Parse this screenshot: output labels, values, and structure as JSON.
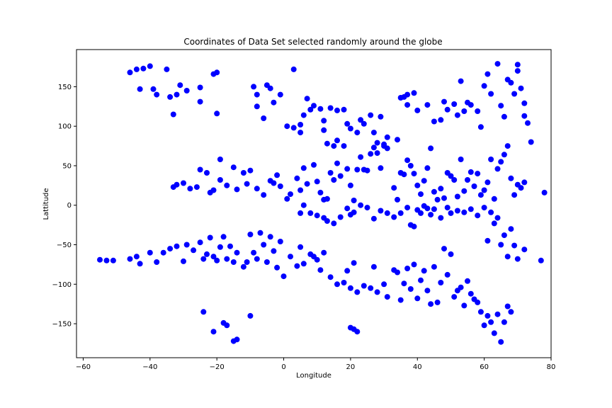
{
  "chart_data": {
    "type": "scatter",
    "title": "Coordinates of Data Set selected randomly around the globe",
    "xlabel": "Longitude",
    "ylabel": "Lattitude",
    "xlim": [
      -62,
      80
    ],
    "ylim": [
      -193,
      197
    ],
    "xticks": [
      -60,
      -40,
      -20,
      0,
      20,
      40,
      60,
      80
    ],
    "yticks": [
      -150,
      -100,
      -50,
      0,
      50,
      100,
      150
    ],
    "xtick_labels": [
      "−60",
      "−40",
      "−20",
      "0",
      "20",
      "40",
      "60",
      "80"
    ],
    "ytick_labels": [
      "−150",
      "−100",
      "−50",
      "0",
      "50",
      "100",
      "150"
    ],
    "grid": false,
    "marker_color": "#0000ff",
    "points": [
      [
        -46,
        168
      ],
      [
        -44,
        172
      ],
      [
        -42,
        173
      ],
      [
        -40,
        176
      ],
      [
        -39,
        147
      ],
      [
        -35,
        172
      ],
      [
        -31,
        152
      ],
      [
        -25,
        149
      ],
      [
        -21,
        166
      ],
      [
        -20,
        168
      ],
      [
        -43,
        147
      ],
      [
        -38,
        140
      ],
      [
        -34,
        137
      ],
      [
        -32,
        140
      ],
      [
        -29,
        145
      ],
      [
        -25,
        131
      ],
      [
        -20,
        116
      ],
      [
        -33,
        115
      ],
      [
        -9,
        150
      ],
      [
        -8,
        140
      ],
      [
        -5,
        152
      ],
      [
        -4,
        148
      ],
      [
        -3,
        130
      ],
      [
        -1,
        140
      ],
      [
        -8,
        125
      ],
      [
        -6,
        110
      ],
      [
        3,
        172
      ],
      [
        1,
        100
      ],
      [
        3,
        98
      ],
      [
        5,
        92
      ],
      [
        6,
        114
      ],
      [
        5,
        102
      ],
      [
        7,
        135
      ],
      [
        8,
        121
      ],
      [
        9,
        126
      ],
      [
        11,
        122
      ],
      [
        12,
        107
      ],
      [
        14,
        123
      ],
      [
        16,
        120
      ],
      [
        18,
        121
      ],
      [
        12,
        95
      ],
      [
        13,
        78
      ],
      [
        15,
        75
      ],
      [
        16,
        82
      ],
      [
        18,
        75
      ],
      [
        19,
        103
      ],
      [
        20,
        97
      ],
      [
        22,
        92
      ],
      [
        23,
        108
      ],
      [
        24,
        103
      ],
      [
        26,
        114
      ],
      [
        27,
        92
      ],
      [
        28,
        79
      ],
      [
        29,
        112
      ],
      [
        30,
        77
      ],
      [
        31,
        86
      ],
      [
        34,
        83
      ],
      [
        35,
        136
      ],
      [
        36,
        137
      ],
      [
        37,
        140
      ],
      [
        37,
        127
      ],
      [
        39,
        142
      ],
      [
        40,
        120
      ],
      [
        43,
        127
      ],
      [
        45,
        106
      ],
      [
        47,
        108
      ],
      [
        48,
        131
      ],
      [
        49,
        121
      ],
      [
        51,
        128
      ],
      [
        52,
        114
      ],
      [
        53,
        157
      ],
      [
        54,
        119
      ],
      [
        55,
        130
      ],
      [
        56,
        127
      ],
      [
        58,
        119
      ],
      [
        59,
        99
      ],
      [
        60,
        151
      ],
      [
        61,
        166
      ],
      [
        62,
        141
      ],
      [
        64,
        179
      ],
      [
        65,
        126
      ],
      [
        66,
        112
      ],
      [
        67,
        159
      ],
      [
        68,
        155
      ],
      [
        69,
        141
      ],
      [
        70,
        178
      ],
      [
        70,
        170
      ],
      [
        71,
        148
      ],
      [
        72,
        129
      ],
      [
        72,
        113
      ],
      [
        73,
        104
      ],
      [
        74,
        80
      ],
      [
        -33,
        23
      ],
      [
        -32,
        26
      ],
      [
        -30,
        28
      ],
      [
        -28,
        21
      ],
      [
        -26,
        23
      ],
      [
        -25,
        45
      ],
      [
        -23,
        41
      ],
      [
        -22,
        16
      ],
      [
        -21,
        19
      ],
      [
        -19,
        58
      ],
      [
        -19,
        32
      ],
      [
        -17,
        25
      ],
      [
        -15,
        48
      ],
      [
        -14,
        20
      ],
      [
        -12,
        41
      ],
      [
        -11,
        27
      ],
      [
        -10,
        44
      ],
      [
        -8,
        21
      ],
      [
        -6,
        13
      ],
      [
        -4,
        31
      ],
      [
        -3,
        28
      ],
      [
        -2,
        38
      ],
      [
        -1,
        24
      ],
      [
        1,
        8
      ],
      [
        2,
        14
      ],
      [
        4,
        34
      ],
      [
        5,
        19
      ],
      [
        6,
        47
      ],
      [
        7,
        27
      ],
      [
        9,
        51
      ],
      [
        10,
        30
      ],
      [
        11,
        16
      ],
      [
        12,
        7
      ],
      [
        13,
        8
      ],
      [
        14,
        41
      ],
      [
        15,
        32
      ],
      [
        16,
        53
      ],
      [
        17,
        37
      ],
      [
        19,
        46
      ],
      [
        20,
        25
      ],
      [
        21,
        6
      ],
      [
        22,
        45
      ],
      [
        23,
        61
      ],
      [
        24,
        45
      ],
      [
        25,
        44
      ],
      [
        26,
        65
      ],
      [
        27,
        73
      ],
      [
        28,
        66
      ],
      [
        29,
        47
      ],
      [
        30,
        75
      ],
      [
        31,
        72
      ],
      [
        33,
        22
      ],
      [
        34,
        7
      ],
      [
        35,
        41
      ],
      [
        36,
        39
      ],
      [
        37,
        57
      ],
      [
        38,
        50
      ],
      [
        39,
        40
      ],
      [
        40,
        25
      ],
      [
        41,
        14
      ],
      [
        42,
        31
      ],
      [
        43,
        47
      ],
      [
        44,
        72
      ],
      [
        45,
        17
      ],
      [
        46,
        7
      ],
      [
        47,
        21
      ],
      [
        48,
        9
      ],
      [
        49,
        41
      ],
      [
        50,
        37
      ],
      [
        51,
        32
      ],
      [
        52,
        11
      ],
      [
        53,
        58
      ],
      [
        54,
        18
      ],
      [
        55,
        32
      ],
      [
        56,
        42
      ],
      [
        57,
        24
      ],
      [
        58,
        40
      ],
      [
        59,
        13
      ],
      [
        60,
        19
      ],
      [
        61,
        29
      ],
      [
        62,
        58
      ],
      [
        63,
        8
      ],
      [
        64,
        46
      ],
      [
        65,
        55
      ],
      [
        66,
        64
      ],
      [
        67,
        75
      ],
      [
        68,
        34
      ],
      [
        69,
        13
      ],
      [
        70,
        26
      ],
      [
        71,
        22
      ],
      [
        72,
        29
      ],
      [
        78,
        16
      ],
      [
        5,
        -10
      ],
      [
        6,
        0
      ],
      [
        8,
        -10
      ],
      [
        10,
        -13
      ],
      [
        12,
        -16
      ],
      [
        13,
        -20
      ],
      [
        15,
        -23
      ],
      [
        17,
        -15
      ],
      [
        19,
        -4
      ],
      [
        20,
        -12
      ],
      [
        21,
        -9
      ],
      [
        23,
        0
      ],
      [
        25,
        -3
      ],
      [
        27,
        -17
      ],
      [
        29,
        -7
      ],
      [
        31,
        -10
      ],
      [
        33,
        -15
      ],
      [
        35,
        -10
      ],
      [
        37,
        -3
      ],
      [
        38,
        -25
      ],
      [
        39,
        -27
      ],
      [
        40,
        -6
      ],
      [
        41,
        -10
      ],
      [
        42,
        -1
      ],
      [
        43,
        -4
      ],
      [
        44,
        -12
      ],
      [
        45,
        -5
      ],
      [
        47,
        -16
      ],
      [
        49,
        -3
      ],
      [
        50,
        -10
      ],
      [
        52,
        -7
      ],
      [
        54,
        -9
      ],
      [
        56,
        -5
      ],
      [
        58,
        -13
      ],
      [
        60,
        -3
      ],
      [
        61,
        -45
      ],
      [
        62,
        -9
      ],
      [
        63,
        -23
      ],
      [
        64,
        -16
      ],
      [
        65,
        -50
      ],
      [
        66,
        -38
      ],
      [
        67,
        -65
      ],
      [
        68,
        -30
      ],
      [
        -55,
        -69
      ],
      [
        -53,
        -70
      ],
      [
        -51,
        -70
      ],
      [
        -46,
        -68
      ],
      [
        -44,
        -65
      ],
      [
        -43,
        -74
      ],
      [
        -40,
        -60
      ],
      [
        -38,
        -72
      ],
      [
        -36,
        -60
      ],
      [
        -34,
        -55
      ],
      [
        -32,
        -52
      ],
      [
        -30,
        -71
      ],
      [
        -29,
        -50
      ],
      [
        -27,
        -57
      ],
      [
        -25,
        -47
      ],
      [
        -24,
        -68
      ],
      [
        -23,
        -62
      ],
      [
        -22,
        -41
      ],
      [
        -21,
        -65
      ],
      [
        -20,
        -70
      ],
      [
        -19,
        -53
      ],
      [
        -18,
        -40
      ],
      [
        -17,
        -68
      ],
      [
        -16,
        -52
      ],
      [
        -15,
        -72
      ],
      [
        -14,
        -60
      ],
      [
        -12,
        -78
      ],
      [
        -11,
        -72
      ],
      [
        -10,
        -37
      ],
      [
        -9,
        -60
      ],
      [
        -8,
        -68
      ],
      [
        -7,
        -35
      ],
      [
        -6,
        -50
      ],
      [
        -5,
        -72
      ],
      [
        -4,
        -40
      ],
      [
        -3,
        -58
      ],
      [
        -2,
        -79
      ],
      [
        -1,
        -46
      ],
      [
        0,
        -90
      ],
      [
        2,
        -65
      ],
      [
        4,
        -77
      ],
      [
        5,
        -53
      ],
      [
        6,
        -74
      ],
      [
        8,
        -62
      ],
      [
        9,
        -65
      ],
      [
        10,
        -69
      ],
      [
        11,
        -82
      ],
      [
        12,
        -60
      ],
      [
        14,
        -91
      ],
      [
        16,
        -100
      ],
      [
        18,
        -98
      ],
      [
        19,
        -83
      ],
      [
        20,
        -105
      ],
      [
        21,
        -73
      ],
      [
        22,
        -110
      ],
      [
        24,
        -102
      ],
      [
        26,
        -105
      ],
      [
        27,
        -78
      ],
      [
        28,
        -110
      ],
      [
        30,
        -100
      ],
      [
        31,
        -116
      ],
      [
        33,
        -82
      ],
      [
        34,
        -85
      ],
      [
        35,
        -120
      ],
      [
        36,
        -99
      ],
      [
        37,
        -80
      ],
      [
        38,
        -106
      ],
      [
        39,
        -75
      ],
      [
        40,
        -118
      ],
      [
        41,
        -95
      ],
      [
        42,
        -83
      ],
      [
        43,
        -108
      ],
      [
        44,
        -125
      ],
      [
        45,
        -78
      ],
      [
        46,
        -123
      ],
      [
        47,
        -98
      ],
      [
        48,
        -55
      ],
      [
        49,
        -88
      ],
      [
        50,
        -62
      ],
      [
        51,
        -116
      ],
      [
        52,
        -108
      ],
      [
        53,
        -104
      ],
      [
        54,
        -127
      ],
      [
        55,
        -96
      ],
      [
        56,
        -112
      ],
      [
        57,
        -119
      ],
      [
        58,
        -123
      ],
      [
        59,
        -135
      ],
      [
        60,
        -152
      ],
      [
        61,
        -140
      ],
      [
        62,
        -148
      ],
      [
        63,
        -162
      ],
      [
        64,
        -138
      ],
      [
        65,
        -173
      ],
      [
        66,
        -148
      ],
      [
        67,
        -128
      ],
      [
        68,
        -135
      ],
      [
        69,
        -51
      ],
      [
        70,
        -68
      ],
      [
        72,
        -56
      ],
      [
        77,
        -70
      ],
      [
        -24,
        -135
      ],
      [
        -21,
        -160
      ],
      [
        -18,
        -149
      ],
      [
        -17,
        -152
      ],
      [
        -15,
        -172
      ],
      [
        -14,
        -170
      ],
      [
        -10,
        -140
      ],
      [
        20,
        -155
      ],
      [
        21,
        -157
      ],
      [
        22,
        -160
      ]
    ]
  }
}
